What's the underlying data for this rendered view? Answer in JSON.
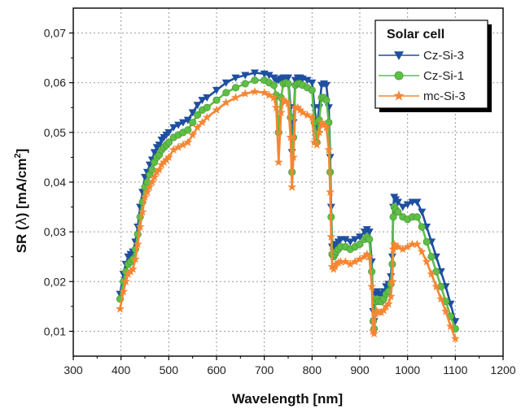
{
  "chart_data": {
    "type": "line",
    "title": "",
    "xlabel": "Wavelength [nm]",
    "ylabel_parts": {
      "prefix": "SR (",
      "symbol": "λ",
      "suffix": ")   [mA/cm",
      "sup": "2",
      "close": "]"
    },
    "xlim": [
      300,
      1200
    ],
    "ylim": [
      0.005,
      0.075
    ],
    "xticks": [
      300,
      400,
      500,
      600,
      700,
      800,
      900,
      1000,
      1100,
      1200
    ],
    "xtick_labels": [
      "300",
      "400",
      "500",
      "600",
      "700",
      "800",
      "900",
      "1000",
      "1100",
      "1200"
    ],
    "yticks": [
      0.01,
      0.02,
      0.03,
      0.04,
      0.05,
      0.06,
      0.07
    ],
    "ytick_labels": [
      "0,01",
      "0,02",
      "0,03",
      "0,04",
      "0,05",
      "0,06",
      "0,07"
    ],
    "grid": true,
    "legend": {
      "title": "Solar cell",
      "position": "top-right"
    },
    "series": [
      {
        "name": "Cz-Si-3",
        "color": "#1f4fa0",
        "marker": "triangle-down",
        "x": [
          398,
          405,
          410,
          415,
          420,
          425,
          430,
          435,
          440,
          445,
          450,
          455,
          460,
          465,
          470,
          475,
          480,
          485,
          490,
          495,
          500,
          510,
          520,
          530,
          540,
          550,
          560,
          570,
          580,
          600,
          620,
          640,
          660,
          680,
          700,
          710,
          720,
          725,
          730,
          735,
          740,
          745,
          750,
          755,
          758,
          761,
          765,
          770,
          775,
          780,
          790,
          800,
          805,
          810,
          815,
          820,
          825,
          830,
          835,
          838,
          840,
          842,
          845,
          848,
          850,
          855,
          860,
          870,
          880,
          890,
          900,
          910,
          915,
          920,
          925,
          928,
          930,
          933,
          936,
          940,
          945,
          950,
          955,
          960,
          965,
          968,
          970,
          972,
          975,
          980,
          990,
          1000,
          1010,
          1020,
          1030,
          1040,
          1050,
          1060,
          1070,
          1080,
          1090,
          1100
        ],
        "y": [
          0.0175,
          0.0215,
          0.0235,
          0.025,
          0.0255,
          0.026,
          0.028,
          0.031,
          0.035,
          0.038,
          0.041,
          0.042,
          0.0435,
          0.0445,
          0.046,
          0.047,
          0.0475,
          0.0485,
          0.049,
          0.0495,
          0.05,
          0.051,
          0.0515,
          0.052,
          0.0525,
          0.054,
          0.0555,
          0.0565,
          0.057,
          0.0585,
          0.06,
          0.061,
          0.0615,
          0.062,
          0.0618,
          0.0615,
          0.061,
          0.0605,
          0.0605,
          0.0608,
          0.061,
          0.061,
          0.061,
          0.055,
          0.046,
          0.052,
          0.0605,
          0.061,
          0.061,
          0.0608,
          0.0605,
          0.06,
          0.055,
          0.051,
          0.055,
          0.0595,
          0.0598,
          0.0595,
          0.055,
          0.045,
          0.035,
          0.027,
          0.026,
          0.0265,
          0.0275,
          0.028,
          0.0285,
          0.0285,
          0.028,
          0.0285,
          0.029,
          0.03,
          0.0305,
          0.03,
          0.024,
          0.014,
          0.012,
          0.0175,
          0.018,
          0.0175,
          0.0175,
          0.018,
          0.019,
          0.0195,
          0.021,
          0.025,
          0.035,
          0.037,
          0.0365,
          0.036,
          0.035,
          0.0355,
          0.036,
          0.036,
          0.034,
          0.031,
          0.028,
          0.025,
          0.022,
          0.019,
          0.0155,
          0.012
        ]
      },
      {
        "name": "Cz-Si-1",
        "color": "#5fbe46",
        "marker": "circle",
        "x": [
          398,
          405,
          410,
          415,
          420,
          425,
          430,
          435,
          440,
          445,
          450,
          455,
          460,
          465,
          470,
          475,
          480,
          485,
          490,
          495,
          500,
          510,
          520,
          530,
          540,
          550,
          560,
          570,
          580,
          600,
          620,
          640,
          660,
          680,
          700,
          710,
          720,
          725,
          730,
          735,
          740,
          745,
          750,
          755,
          758,
          761,
          765,
          770,
          775,
          780,
          790,
          800,
          805,
          810,
          815,
          820,
          825,
          830,
          835,
          838,
          840,
          842,
          845,
          848,
          850,
          855,
          860,
          870,
          880,
          890,
          900,
          910,
          915,
          920,
          925,
          928,
          930,
          933,
          936,
          940,
          945,
          950,
          955,
          960,
          965,
          968,
          970,
          972,
          975,
          980,
          990,
          1000,
          1010,
          1020,
          1030,
          1040,
          1050,
          1060,
          1070,
          1080,
          1090,
          1100
        ],
        "y": [
          0.0165,
          0.02,
          0.022,
          0.0235,
          0.024,
          0.0245,
          0.0265,
          0.0295,
          0.033,
          0.036,
          0.039,
          0.04,
          0.0415,
          0.0425,
          0.044,
          0.045,
          0.0455,
          0.0465,
          0.047,
          0.0475,
          0.048,
          0.049,
          0.0495,
          0.05,
          0.0505,
          0.052,
          0.0535,
          0.0545,
          0.055,
          0.0565,
          0.058,
          0.059,
          0.0598,
          0.0605,
          0.0605,
          0.06,
          0.0595,
          0.0575,
          0.05,
          0.057,
          0.0598,
          0.06,
          0.0598,
          0.053,
          0.042,
          0.049,
          0.0595,
          0.0598,
          0.0598,
          0.0595,
          0.059,
          0.0585,
          0.052,
          0.048,
          0.0525,
          0.057,
          0.057,
          0.0565,
          0.052,
          0.042,
          0.033,
          0.0255,
          0.025,
          0.0255,
          0.026,
          0.0265,
          0.027,
          0.027,
          0.0265,
          0.027,
          0.0275,
          0.0285,
          0.029,
          0.0285,
          0.022,
          0.012,
          0.0105,
          0.016,
          0.0165,
          0.016,
          0.016,
          0.0165,
          0.0175,
          0.018,
          0.0195,
          0.0235,
          0.033,
          0.035,
          0.0345,
          0.034,
          0.033,
          0.0325,
          0.033,
          0.033,
          0.031,
          0.028,
          0.025,
          0.022,
          0.019,
          0.016,
          0.013,
          0.0105
        ]
      },
      {
        "name": "mc-Si-3",
        "color": "#f58634",
        "marker": "star",
        "x": [
          398,
          405,
          410,
          415,
          420,
          425,
          430,
          435,
          440,
          445,
          450,
          455,
          460,
          465,
          470,
          475,
          480,
          485,
          490,
          495,
          500,
          510,
          520,
          530,
          540,
          550,
          560,
          570,
          580,
          600,
          620,
          640,
          660,
          680,
          700,
          710,
          720,
          725,
          730,
          735,
          740,
          745,
          750,
          755,
          758,
          761,
          765,
          770,
          775,
          780,
          790,
          800,
          805,
          810,
          815,
          820,
          825,
          830,
          835,
          838,
          840,
          842,
          845,
          848,
          850,
          855,
          860,
          870,
          880,
          890,
          900,
          910,
          915,
          920,
          925,
          928,
          930,
          933,
          936,
          940,
          945,
          950,
          955,
          960,
          965,
          968,
          970,
          972,
          975,
          980,
          990,
          1000,
          1010,
          1020,
          1030,
          1040,
          1050,
          1060,
          1070,
          1080,
          1090,
          1100
        ],
        "y": [
          0.0145,
          0.018,
          0.02,
          0.0215,
          0.022,
          0.0225,
          0.0245,
          0.0275,
          0.031,
          0.034,
          0.037,
          0.038,
          0.039,
          0.04,
          0.041,
          0.042,
          0.0425,
          0.0435,
          0.044,
          0.0445,
          0.045,
          0.0465,
          0.047,
          0.0475,
          0.048,
          0.0495,
          0.051,
          0.052,
          0.053,
          0.0545,
          0.056,
          0.057,
          0.0578,
          0.0582,
          0.058,
          0.0575,
          0.057,
          0.055,
          0.044,
          0.054,
          0.0565,
          0.0562,
          0.0558,
          0.049,
          0.039,
          0.045,
          0.055,
          0.055,
          0.0545,
          0.054,
          0.0535,
          0.053,
          0.048,
          0.0475,
          0.05,
          0.052,
          0.0515,
          0.051,
          0.0465,
          0.038,
          0.029,
          0.023,
          0.0225,
          0.023,
          0.0235,
          0.0238,
          0.024,
          0.024,
          0.0235,
          0.024,
          0.0245,
          0.025,
          0.0255,
          0.025,
          0.019,
          0.01,
          0.0095,
          0.0135,
          0.014,
          0.0138,
          0.0138,
          0.0142,
          0.015,
          0.0155,
          0.017,
          0.02,
          0.0265,
          0.0275,
          0.027,
          0.027,
          0.0265,
          0.027,
          0.0275,
          0.0275,
          0.026,
          0.024,
          0.0215,
          0.019,
          0.0165,
          0.014,
          0.011,
          0.0085
        ]
      }
    ]
  }
}
